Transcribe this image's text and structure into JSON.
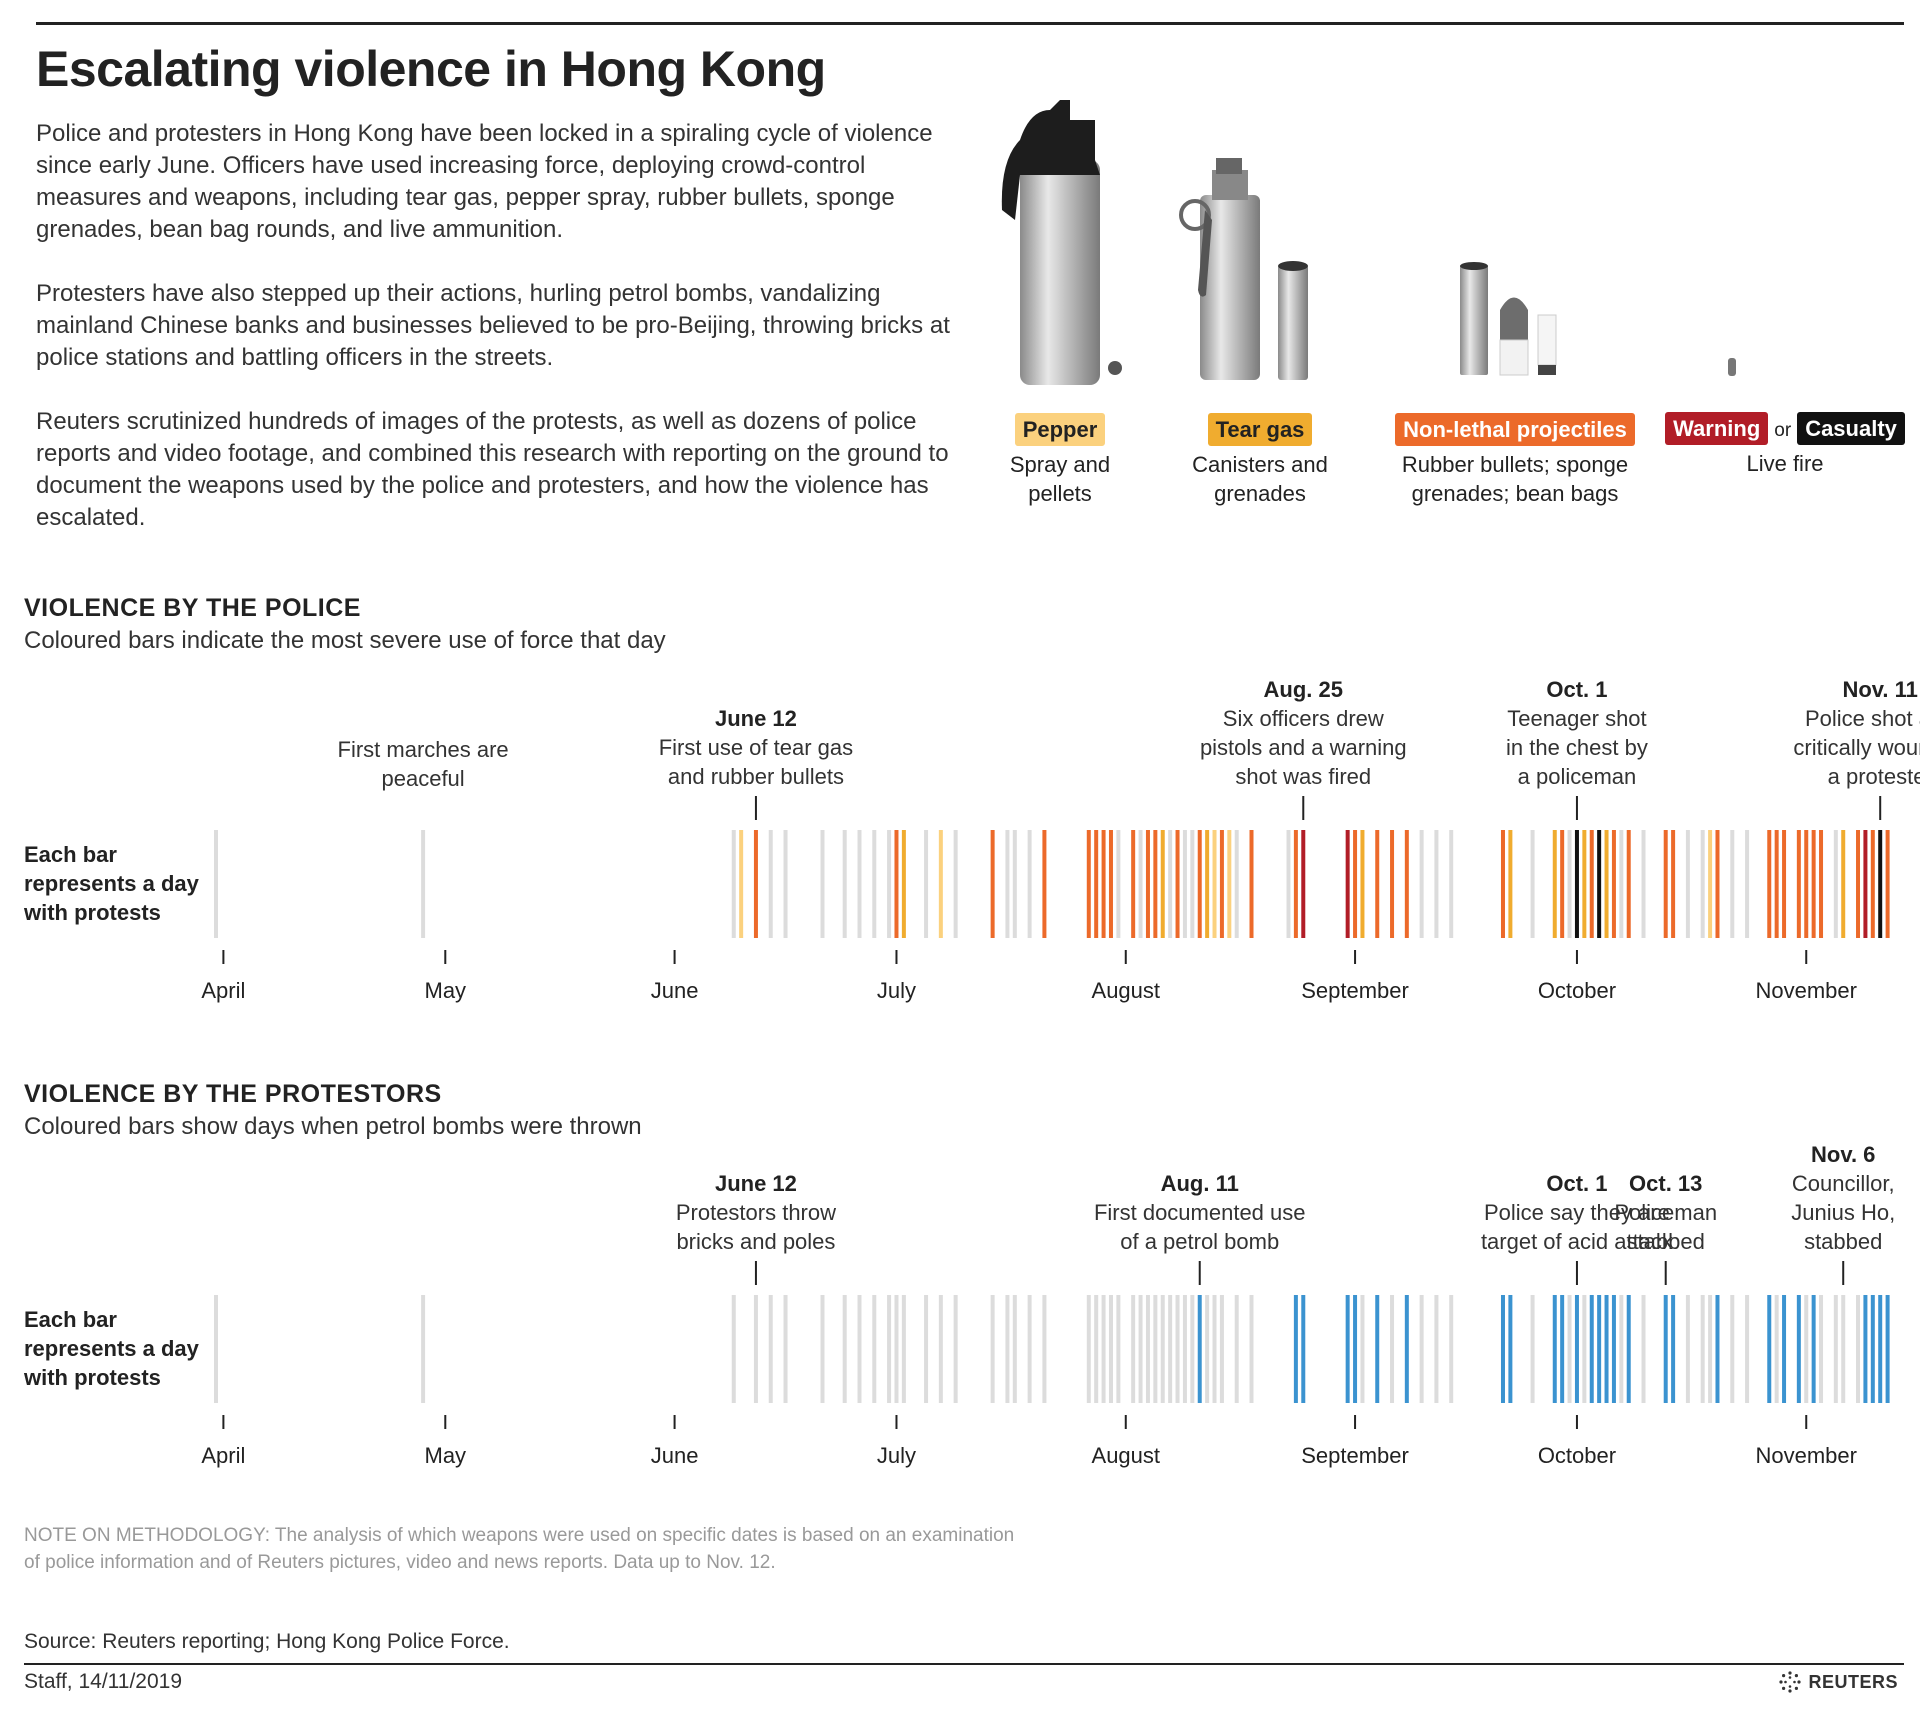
{
  "title": "Escalating violence in Hong Kong",
  "intro": [
    "Police and protesters in Hong Kong have been locked in a spiraling cycle of violence since early June. Officers have used increasing force, deploying crowd-control measures and weapons, including tear gas, pepper spray, rubber bullets, sponge grenades, bean bag rounds, and live ammunition.",
    "Protesters have also stepped up their actions, hurling petrol bombs, vandalizing mainland Chinese banks and businesses believed to be pro-Beijing, throwing bricks at police stations and battling officers in the streets.",
    "Reuters scrutinized hundreds of images of the protests, as well as dozens of police reports and video footage, and combined this research with reporting on the ground to document the weapons used by the police and protesters, and how the violence has escalated."
  ],
  "legend": {
    "pepper": {
      "label": "Pepper",
      "desc": [
        "Spray and",
        "pellets"
      ]
    },
    "teargas": {
      "label": "Tear gas",
      "desc": [
        "Canisters and",
        "grenades"
      ]
    },
    "nonlethal": {
      "label": "Non-lethal projectiles",
      "desc": [
        "Rubber bullets; sponge",
        "grenades; bean bags"
      ]
    },
    "live": {
      "warning": "Warning",
      "or": "or",
      "casualty": "Casualty",
      "desc": "Live fire"
    }
  },
  "colors": {
    "none": "#dcdcdc",
    "pepper": "#fbd17e",
    "teargas": "#f0ac2f",
    "nonlethal": "#ec6a2a",
    "warning": "#b11d27",
    "casualty": "#111111",
    "petrol": "#3b93d0"
  },
  "row_label": [
    "Each bar",
    "represents a day",
    "with protests"
  ],
  "police": {
    "title": "VIOLENCE BY THE POLICE",
    "subtitle": "Coloured bars indicate the most severe use of force that day"
  },
  "protest": {
    "title": "VIOLENCE BY THE PROTESTORS",
    "subtitle": "Coloured bars show days when petrol bombs were thrown"
  },
  "note": "NOTE ON METHODOLOGY: The analysis of which weapons were used on specific dates is based on an examination of police information and of Reuters pictures, video and news reports. Data up to Nov. 12.",
  "source": "Source: Reuters reporting; Hong Kong Police Force.",
  "credit": "Staff, 14/11/2019",
  "brand": "REUTERS",
  "chart_data": [
    {
      "type": "bar",
      "title": "VIOLENCE BY THE POLICE",
      "subtitle": "Coloured bars indicate the most severe use of force that day",
      "x_axis": {
        "type": "date",
        "range": [
          "2019-04-01",
          "2019-11-12"
        ],
        "ticks": [
          "April",
          "May",
          "June",
          "July",
          "August",
          "September",
          "October",
          "November"
        ]
      },
      "annotations": [
        {
          "date": "2019-04-28",
          "label": "",
          "text": [
            "First marches are",
            "peaceful"
          ],
          "marker": false
        },
        {
          "date": "2019-06-12",
          "label": "June 12",
          "text": [
            "First use of tear gas",
            "and rubber bullets"
          ],
          "marker": true
        },
        {
          "date": "2019-08-25",
          "label": "Aug. 25",
          "text": [
            "Six officers drew",
            "pistols and a warning",
            "shot was fired"
          ],
          "marker": true
        },
        {
          "date": "2019-10-01",
          "label": "Oct. 1",
          "text": [
            "Teenager shot",
            "in the chest by",
            "a policeman"
          ],
          "marker": true
        },
        {
          "date": "2019-11-11",
          "label": "Nov. 11",
          "text": [
            "Police shot and",
            "critically wounded",
            "a protester"
          ],
          "marker": true
        }
      ],
      "days": [
        [
          "2019-03-31",
          "none"
        ],
        [
          "2019-04-28",
          "none"
        ],
        [
          "2019-06-09",
          "none"
        ],
        [
          "2019-06-10",
          "pepper"
        ],
        [
          "2019-06-12",
          "nonlethal"
        ],
        [
          "2019-06-14",
          "none"
        ],
        [
          "2019-06-16",
          "none"
        ],
        [
          "2019-06-21",
          "none"
        ],
        [
          "2019-06-24",
          "none"
        ],
        [
          "2019-06-26",
          "none"
        ],
        [
          "2019-06-28",
          "none"
        ],
        [
          "2019-06-30",
          "none"
        ],
        [
          "2019-07-01",
          "nonlethal"
        ],
        [
          "2019-07-02",
          "teargas"
        ],
        [
          "2019-07-05",
          "none"
        ],
        [
          "2019-07-07",
          "pepper"
        ],
        [
          "2019-07-09",
          "none"
        ],
        [
          "2019-07-14",
          "nonlethal"
        ],
        [
          "2019-07-16",
          "none"
        ],
        [
          "2019-07-17",
          "none"
        ],
        [
          "2019-07-19",
          "none"
        ],
        [
          "2019-07-21",
          "nonlethal"
        ],
        [
          "2019-07-27",
          "nonlethal"
        ],
        [
          "2019-07-28",
          "nonlethal"
        ],
        [
          "2019-07-29",
          "nonlethal"
        ],
        [
          "2019-07-30",
          "nonlethal"
        ],
        [
          "2019-07-31",
          "none"
        ],
        [
          "2019-08-02",
          "nonlethal"
        ],
        [
          "2019-08-03",
          "none"
        ],
        [
          "2019-08-04",
          "nonlethal"
        ],
        [
          "2019-08-05",
          "nonlethal"
        ],
        [
          "2019-08-06",
          "teargas"
        ],
        [
          "2019-08-07",
          "none"
        ],
        [
          "2019-08-08",
          "nonlethal"
        ],
        [
          "2019-08-09",
          "none"
        ],
        [
          "2019-08-10",
          "none"
        ],
        [
          "2019-08-11",
          "nonlethal"
        ],
        [
          "2019-08-12",
          "teargas"
        ],
        [
          "2019-08-13",
          "pepper"
        ],
        [
          "2019-08-14",
          "nonlethal"
        ],
        [
          "2019-08-15",
          "pepper"
        ],
        [
          "2019-08-16",
          "none"
        ],
        [
          "2019-08-18",
          "nonlethal"
        ],
        [
          "2019-08-23",
          "none"
        ],
        [
          "2019-08-24",
          "nonlethal"
        ],
        [
          "2019-08-25",
          "warning"
        ],
        [
          "2019-08-31",
          "warning"
        ],
        [
          "2019-09-01",
          "nonlethal"
        ],
        [
          "2019-09-02",
          "teargas"
        ],
        [
          "2019-09-04",
          "nonlethal"
        ],
        [
          "2019-09-06",
          "nonlethal"
        ],
        [
          "2019-09-08",
          "nonlethal"
        ],
        [
          "2019-09-10",
          "none"
        ],
        [
          "2019-09-12",
          "none"
        ],
        [
          "2019-09-14",
          "none"
        ],
        [
          "2019-09-21",
          "nonlethal"
        ],
        [
          "2019-09-22",
          "teargas"
        ],
        [
          "2019-09-25",
          "none"
        ],
        [
          "2019-09-28",
          "teargas"
        ],
        [
          "2019-09-29",
          "nonlethal"
        ],
        [
          "2019-09-30",
          "none"
        ],
        [
          "2019-10-01",
          "casualty"
        ],
        [
          "2019-10-02",
          "teargas"
        ],
        [
          "2019-10-03",
          "nonlethal"
        ],
        [
          "2019-10-04",
          "casualty"
        ],
        [
          "2019-10-05",
          "teargas"
        ],
        [
          "2019-10-06",
          "nonlethal"
        ],
        [
          "2019-10-07",
          "none"
        ],
        [
          "2019-10-08",
          "nonlethal"
        ],
        [
          "2019-10-10",
          "none"
        ],
        [
          "2019-10-13",
          "nonlethal"
        ],
        [
          "2019-10-14",
          "nonlethal"
        ],
        [
          "2019-10-16",
          "none"
        ],
        [
          "2019-10-18",
          "none"
        ],
        [
          "2019-10-19",
          "pepper"
        ],
        [
          "2019-10-20",
          "nonlethal"
        ],
        [
          "2019-10-22",
          "none"
        ],
        [
          "2019-10-24",
          "none"
        ],
        [
          "2019-10-27",
          "nonlethal"
        ],
        [
          "2019-10-28",
          "nonlethal"
        ],
        [
          "2019-10-29",
          "nonlethal"
        ],
        [
          "2019-10-31",
          "nonlethal"
        ],
        [
          "2019-11-01",
          "nonlethal"
        ],
        [
          "2019-11-02",
          "nonlethal"
        ],
        [
          "2019-11-03",
          "nonlethal"
        ],
        [
          "2019-11-05",
          "none"
        ],
        [
          "2019-11-06",
          "teargas"
        ],
        [
          "2019-11-08",
          "nonlethal"
        ],
        [
          "2019-11-09",
          "warning"
        ],
        [
          "2019-11-10",
          "nonlethal"
        ],
        [
          "2019-11-11",
          "casualty"
        ],
        [
          "2019-11-12",
          "nonlethal"
        ]
      ]
    },
    {
      "type": "bar",
      "title": "VIOLENCE BY THE PROTESTORS",
      "subtitle": "Coloured bars show days when petrol bombs were thrown",
      "x_axis": {
        "type": "date",
        "range": [
          "2019-04-01",
          "2019-11-12"
        ],
        "ticks": [
          "April",
          "May",
          "June",
          "July",
          "August",
          "September",
          "October",
          "November"
        ]
      },
      "annotations": [
        {
          "date": "2019-06-12",
          "label": "June 12",
          "text": [
            "Protestors throw",
            "bricks and poles"
          ],
          "marker": true
        },
        {
          "date": "2019-08-11",
          "label": "Aug. 11",
          "text": [
            "First documented use",
            "of a petrol bomb"
          ],
          "marker": true
        },
        {
          "date": "2019-10-01",
          "label": "Oct. 1",
          "text": [
            "Police say they are",
            "target of acid attack"
          ],
          "marker": true
        },
        {
          "date": "2019-10-13",
          "label": "Oct. 13",
          "text": [
            "Policeman",
            "stabbed"
          ],
          "marker": true
        },
        {
          "date": "2019-11-06",
          "label": "Nov. 6",
          "text": [
            "Councillor,",
            "Junius Ho,",
            "stabbed"
          ],
          "marker": true
        }
      ],
      "days": [
        [
          "2019-03-31",
          "none"
        ],
        [
          "2019-04-28",
          "none"
        ],
        [
          "2019-06-09",
          "none"
        ],
        [
          "2019-06-12",
          "none"
        ],
        [
          "2019-06-14",
          "none"
        ],
        [
          "2019-06-16",
          "none"
        ],
        [
          "2019-06-21",
          "none"
        ],
        [
          "2019-06-24",
          "none"
        ],
        [
          "2019-06-26",
          "none"
        ],
        [
          "2019-06-28",
          "none"
        ],
        [
          "2019-06-30",
          "none"
        ],
        [
          "2019-07-01",
          "none"
        ],
        [
          "2019-07-02",
          "none"
        ],
        [
          "2019-07-05",
          "none"
        ],
        [
          "2019-07-07",
          "none"
        ],
        [
          "2019-07-09",
          "none"
        ],
        [
          "2019-07-14",
          "none"
        ],
        [
          "2019-07-16",
          "none"
        ],
        [
          "2019-07-17",
          "none"
        ],
        [
          "2019-07-19",
          "none"
        ],
        [
          "2019-07-21",
          "none"
        ],
        [
          "2019-07-27",
          "none"
        ],
        [
          "2019-07-28",
          "none"
        ],
        [
          "2019-07-29",
          "none"
        ],
        [
          "2019-07-30",
          "none"
        ],
        [
          "2019-07-31",
          "none"
        ],
        [
          "2019-08-02",
          "none"
        ],
        [
          "2019-08-03",
          "none"
        ],
        [
          "2019-08-04",
          "none"
        ],
        [
          "2019-08-05",
          "none"
        ],
        [
          "2019-08-06",
          "none"
        ],
        [
          "2019-08-07",
          "none"
        ],
        [
          "2019-08-08",
          "none"
        ],
        [
          "2019-08-09",
          "none"
        ],
        [
          "2019-08-10",
          "none"
        ],
        [
          "2019-08-11",
          "petrol"
        ],
        [
          "2019-08-12",
          "none"
        ],
        [
          "2019-08-13",
          "none"
        ],
        [
          "2019-08-14",
          "none"
        ],
        [
          "2019-08-16",
          "none"
        ],
        [
          "2019-08-18",
          "none"
        ],
        [
          "2019-08-24",
          "petrol"
        ],
        [
          "2019-08-25",
          "petrol"
        ],
        [
          "2019-08-31",
          "petrol"
        ],
        [
          "2019-09-01",
          "petrol"
        ],
        [
          "2019-09-02",
          "none"
        ],
        [
          "2019-09-04",
          "petrol"
        ],
        [
          "2019-09-06",
          "none"
        ],
        [
          "2019-09-08",
          "petrol"
        ],
        [
          "2019-09-10",
          "none"
        ],
        [
          "2019-09-12",
          "none"
        ],
        [
          "2019-09-14",
          "none"
        ],
        [
          "2019-09-21",
          "petrol"
        ],
        [
          "2019-09-22",
          "petrol"
        ],
        [
          "2019-09-25",
          "none"
        ],
        [
          "2019-09-28",
          "petrol"
        ],
        [
          "2019-09-29",
          "petrol"
        ],
        [
          "2019-09-30",
          "none"
        ],
        [
          "2019-10-01",
          "petrol"
        ],
        [
          "2019-10-02",
          "none"
        ],
        [
          "2019-10-03",
          "petrol"
        ],
        [
          "2019-10-04",
          "petrol"
        ],
        [
          "2019-10-05",
          "petrol"
        ],
        [
          "2019-10-06",
          "petrol"
        ],
        [
          "2019-10-07",
          "none"
        ],
        [
          "2019-10-08",
          "petrol"
        ],
        [
          "2019-10-10",
          "none"
        ],
        [
          "2019-10-13",
          "petrol"
        ],
        [
          "2019-10-14",
          "petrol"
        ],
        [
          "2019-10-16",
          "none"
        ],
        [
          "2019-10-18",
          "none"
        ],
        [
          "2019-10-19",
          "none"
        ],
        [
          "2019-10-20",
          "petrol"
        ],
        [
          "2019-10-22",
          "none"
        ],
        [
          "2019-10-24",
          "none"
        ],
        [
          "2019-10-27",
          "petrol"
        ],
        [
          "2019-10-28",
          "none"
        ],
        [
          "2019-10-29",
          "petrol"
        ],
        [
          "2019-10-31",
          "petrol"
        ],
        [
          "2019-11-01",
          "none"
        ],
        [
          "2019-11-02",
          "petrol"
        ],
        [
          "2019-11-03",
          "none"
        ],
        [
          "2019-11-05",
          "none"
        ],
        [
          "2019-11-06",
          "none"
        ],
        [
          "2019-11-08",
          "none"
        ],
        [
          "2019-11-09",
          "petrol"
        ],
        [
          "2019-11-10",
          "petrol"
        ],
        [
          "2019-11-11",
          "petrol"
        ],
        [
          "2019-11-12",
          "petrol"
        ]
      ]
    }
  ]
}
